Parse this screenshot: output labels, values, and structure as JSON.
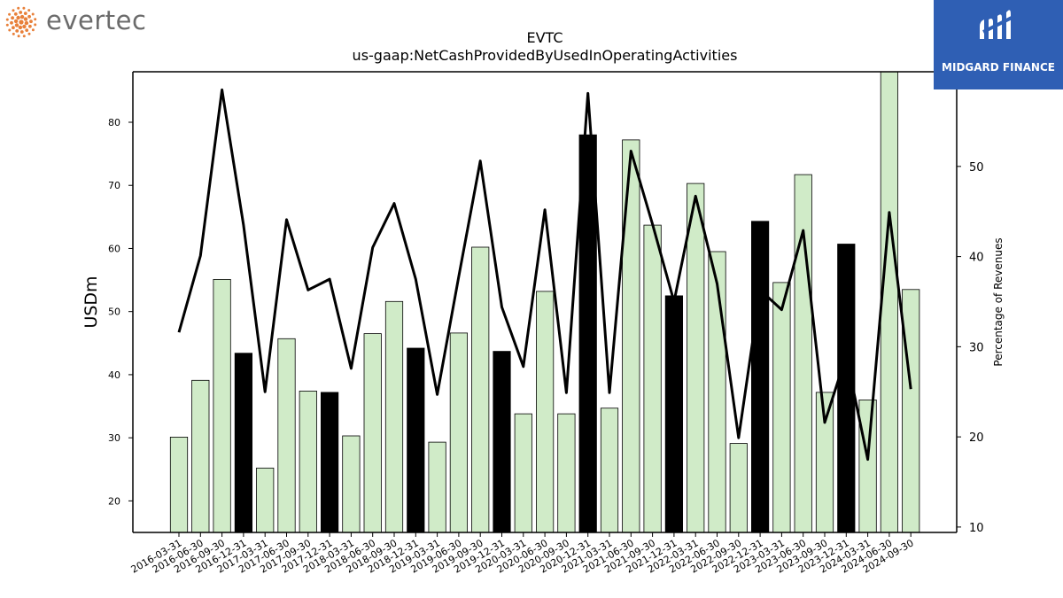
{
  "brand": {
    "left_logo_text": "evertec",
    "right_logo_text": "MIDGARD FINANCE"
  },
  "colors": {
    "bar_light": "#d0ebc8",
    "bar_dark": "#000000",
    "line": "#000000",
    "left_logo_accent": "#e8803a",
    "right_logo_bg": "#2f5fb4"
  },
  "chart_data": {
    "type": "bar",
    "title": "EVTC",
    "subtitle": "us-gaap:NetCashProvidedByUsedInOperatingActivities",
    "ylabel": "USDm",
    "y2label": "Percentage of Revenues",
    "ylim": [
      15,
      88
    ],
    "y2lim": [
      9.4,
      60.5
    ],
    "yticks": [
      20,
      30,
      40,
      50,
      60,
      70,
      80
    ],
    "y2ticks": [
      10,
      20,
      30,
      40,
      50
    ],
    "categories": [
      "2016-03-31",
      "2016-06-30",
      "2016-09-30",
      "2016-12-31",
      "2017-03-31",
      "2017-06-30",
      "2017-09-30",
      "2017-12-31",
      "2018-03-31",
      "2018-06-30",
      "2018-09-30",
      "2018-12-31",
      "2019-03-31",
      "2019-06-30",
      "2019-09-30",
      "2019-12-31",
      "2020-03-31",
      "2020-06-30",
      "2020-09-30",
      "2020-12-31",
      "2021-03-31",
      "2021-06-30",
      "2021-09-30",
      "2021-12-31",
      "2022-03-31",
      "2022-06-30",
      "2022-09-30",
      "2022-12-31",
      "2023-03-31",
      "2023-06-30",
      "2023-09-30",
      "2023-12-31",
      "2024-03-31",
      "2024-06-30",
      "2024-09-30"
    ],
    "series": [
      {
        "type": "bar",
        "values": [
          30.1,
          39.1,
          55.1,
          43.4,
          25.2,
          45.7,
          37.4,
          37.2,
          30.3,
          46.5,
          51.6,
          44.2,
          29.3,
          46.6,
          60.2,
          43.7,
          33.8,
          53.2,
          33.8,
          78.0,
          34.7,
          77.2,
          63.7,
          52.5,
          70.3,
          59.5,
          29.1,
          64.3,
          54.6,
          71.7,
          37.2,
          60.7,
          36.0,
          88.5,
          53.5
        ],
        "highlight": [
          false,
          false,
          false,
          true,
          false,
          false,
          false,
          true,
          false,
          false,
          false,
          true,
          false,
          false,
          false,
          true,
          false,
          false,
          false,
          true,
          false,
          false,
          false,
          true,
          false,
          false,
          false,
          true,
          false,
          false,
          false,
          true,
          false,
          false,
          false
        ]
      },
      {
        "type": "line",
        "axis": "right",
        "values": [
          31.6,
          40.1,
          58.5,
          43.5,
          25.0,
          44.1,
          36.3,
          37.5,
          27.6,
          41.0,
          45.9,
          37.5,
          24.7,
          37.8,
          50.6,
          34.4,
          27.8,
          45.2,
          24.9,
          58.1,
          24.9,
          51.7,
          43.6,
          35.0,
          46.7,
          37.0,
          19.9,
          36.3,
          34.1,
          42.9,
          21.6,
          29.0,
          17.5,
          44.9,
          25.3
        ]
      }
    ]
  }
}
